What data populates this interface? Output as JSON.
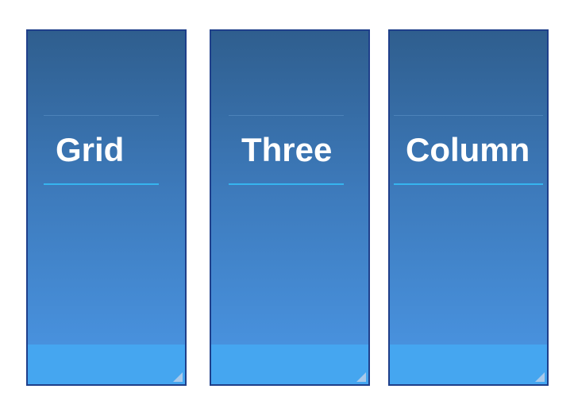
{
  "columns": [
    {
      "heading": "Grid"
    },
    {
      "heading": "Three"
    },
    {
      "heading": "Column"
    }
  ],
  "colors": {
    "panel_top": "#2f5e8e",
    "panel_bottom": "#4b97e6",
    "panel_border": "#1f3f8a",
    "footer": "#45a6f0",
    "heading_rule": "#36b4ee",
    "heading_text": "#ffffff"
  },
  "icons": {
    "resize_handle": "resize-grip-icon"
  }
}
